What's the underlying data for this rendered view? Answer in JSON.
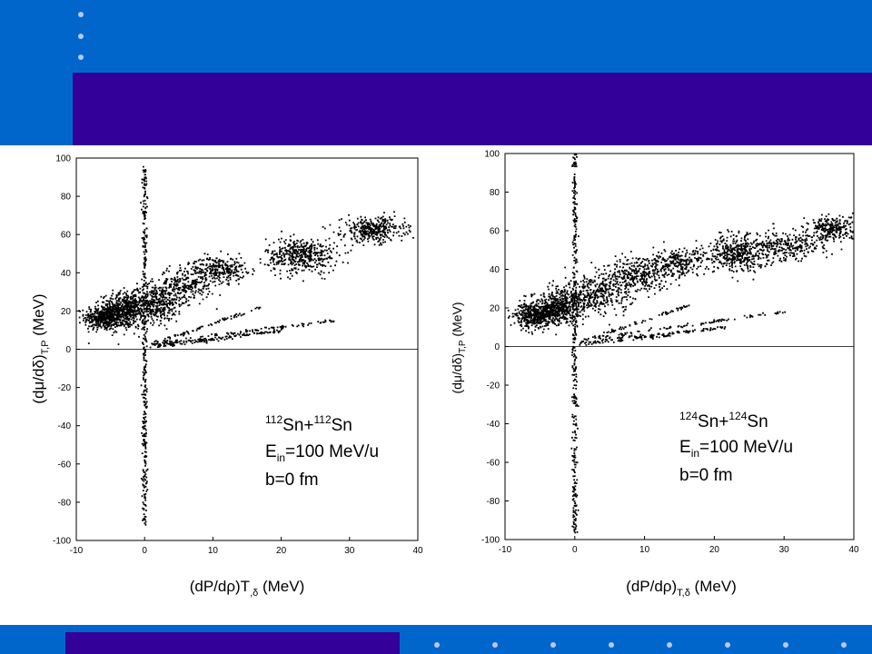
{
  "colors": {
    "band": "#0066cc",
    "band_dark": "#330099",
    "dot": "#b8c8e8",
    "points": "#000000"
  },
  "chart_data": [
    {
      "type": "scatter",
      "xlim": [
        -10,
        40
      ],
      "ylim": [
        -100,
        100
      ],
      "xticks": [
        "-10",
        "0",
        "10",
        "20",
        "30",
        "40"
      ],
      "yticks": [
        "-100",
        "-80",
        "-60",
        "-40",
        "-20",
        "0",
        "20",
        "40",
        "60",
        "80",
        "100"
      ],
      "xlabel": {
        "main": "(dP/dρ)T",
        "sub": ",δ",
        "unit": " (MeV)"
      },
      "ylabel": {
        "main": "(dμ/dδ)",
        "sub": "T,P",
        "unit": " (MeV)"
      },
      "annotation": {
        "reaction": {
          "a1": "112",
          "s1": "Sn+",
          "a2": "112",
          "s2": "Sn"
        },
        "energy": {
          "e": "E",
          "sub": "in",
          "rest": "=100 MeV/u"
        },
        "impact": "b=0 fm"
      },
      "clusters": [
        {
          "cx": -6.0,
          "cy": 16.5,
          "sx": 1.4,
          "sy": 3.2,
          "n": 420
        },
        {
          "cx": -3.0,
          "cy": 20.0,
          "sx": 1.6,
          "sy": 4.5,
          "n": 460
        },
        {
          "cx": 1.5,
          "cy": 24.0,
          "sx": 2.2,
          "sy": 5.0,
          "n": 420
        },
        {
          "cx": 6.0,
          "cy": 34.0,
          "sx": 2.2,
          "sy": 4.5,
          "n": 260
        },
        {
          "cx": 11.0,
          "cy": 42.0,
          "sx": 1.9,
          "sy": 3.2,
          "n": 260
        },
        {
          "cx": 23.0,
          "cy": 49.0,
          "sx": 2.6,
          "sy": 4.6,
          "n": 460
        },
        {
          "cx": 33.5,
          "cy": 62.5,
          "sx": 2.3,
          "sy": 3.2,
          "n": 360
        }
      ],
      "vertical_band": {
        "x": 0.0,
        "y_min": -92,
        "y_max": 96,
        "n": 360
      },
      "rays": [
        {
          "x0": 0.5,
          "y0": 3,
          "x1": 28,
          "y1": 15,
          "n": 90
        },
        {
          "x0": 0.5,
          "y0": 2,
          "x1": 21,
          "y1": 10,
          "n": 90
        },
        {
          "x0": 0.5,
          "y0": 2,
          "x1": 17,
          "y1": 22,
          "n": 70
        },
        {
          "x0": 0.5,
          "y0": 1,
          "x1": 13,
          "y1": 6,
          "n": 60
        }
      ]
    },
    {
      "type": "scatter",
      "xlim": [
        -10,
        40
      ],
      "ylim": [
        -100,
        100
      ],
      "xticks": [
        "-10",
        "0",
        "10",
        "20",
        "30",
        "40"
      ],
      "yticks": [
        "-100",
        "-80",
        "-60",
        "-40",
        "-20",
        "0",
        "20",
        "40",
        "60",
        "80",
        "100"
      ],
      "xlabel": {
        "main": "(dP/dρ)",
        "sub": "T,δ",
        "unit": " (MeV)"
      },
      "ylabel": {
        "main": "(dμ/dδ)",
        "sub": "T,P",
        "unit": " (MeV)"
      },
      "annotation": {
        "reaction": {
          "a1": "124",
          "s1": "Sn+",
          "a2": "124",
          "s2": "Sn"
        },
        "energy": {
          "e": "E",
          "sub": "in",
          "rest": "=100 MeV/u"
        },
        "impact": "b=0 fm"
      },
      "clusters": [
        {
          "cx": -6.0,
          "cy": 16.0,
          "sx": 1.4,
          "sy": 3.2,
          "n": 420
        },
        {
          "cx": -2.5,
          "cy": 20.0,
          "sx": 1.7,
          "sy": 4.5,
          "n": 460
        },
        {
          "cx": 3.0,
          "cy": 27.0,
          "sx": 2.6,
          "sy": 5.0,
          "n": 420
        },
        {
          "cx": 9.0,
          "cy": 37.0,
          "sx": 2.5,
          "sy": 4.5,
          "n": 300
        },
        {
          "cx": 15.0,
          "cy": 43.0,
          "sx": 2.2,
          "sy": 3.6,
          "n": 260
        },
        {
          "cx": 23.5,
          "cy": 49.0,
          "sx": 2.4,
          "sy": 4.8,
          "n": 440
        },
        {
          "cx": 31.0,
          "cy": 52.0,
          "sx": 2.4,
          "sy": 4.0,
          "n": 240
        },
        {
          "cx": 37.0,
          "cy": 61.0,
          "sx": 1.8,
          "sy": 3.2,
          "n": 260
        }
      ],
      "vertical_band": {
        "x": 0.0,
        "y_min": -97,
        "y_max": 100,
        "n": 360
      },
      "rays": [
        {
          "x0": 0.5,
          "y0": 3,
          "x1": 30,
          "y1": 18,
          "n": 90
        },
        {
          "x0": 0.5,
          "y0": 2,
          "x1": 22,
          "y1": 10,
          "n": 90
        },
        {
          "x0": 0.5,
          "y0": 2,
          "x1": 17,
          "y1": 22,
          "n": 70
        },
        {
          "x0": 0.5,
          "y0": 1,
          "x1": 14,
          "y1": 6,
          "n": 60
        }
      ]
    }
  ]
}
